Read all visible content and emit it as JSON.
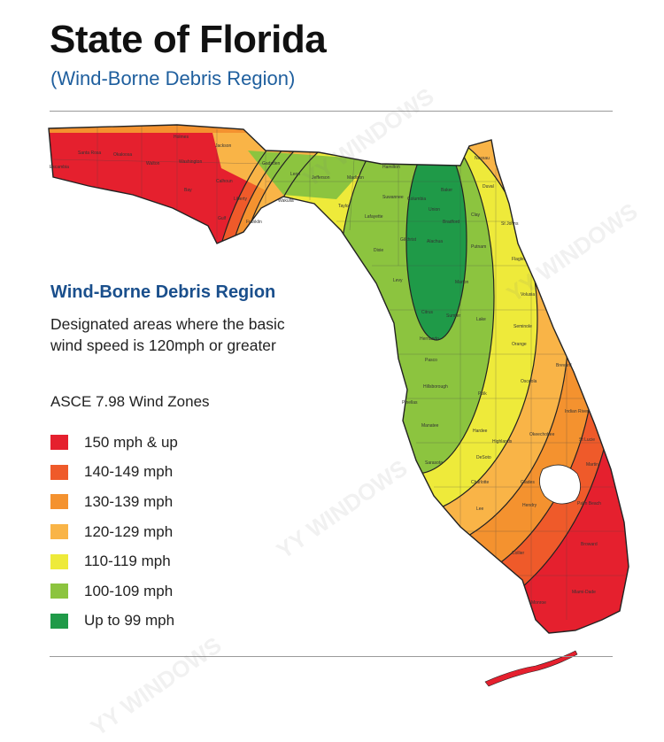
{
  "header": {
    "title": "State of Florida",
    "subtitle": "(Wind-Borne Debris Region)"
  },
  "legend": {
    "heading": "Wind-Borne Debris Region",
    "description_lines": [
      "Designated areas where the basic",
      "wind speed is 120mph or greater"
    ],
    "zones_title": "ASCE 7.98 Wind Zones",
    "zones": [
      {
        "label": "150 mph & up",
        "color": "#e5202e"
      },
      {
        "label": "140-149 mph",
        "color": "#ef5a2a"
      },
      {
        "label": "130-139 mph",
        "color": "#f4922f"
      },
      {
        "label": "120-129 mph",
        "color": "#f9b447"
      },
      {
        "label": "110-119 mph",
        "color": "#eeea3a"
      },
      {
        "label": "100-109 mph",
        "color": "#8cc43f"
      },
      {
        "label": "Up to 99 mph",
        "color": "#1f9a48"
      }
    ]
  },
  "watermark_text": "YY WINDOWS",
  "counties": {
    "panhandle": [
      "Santa Rosa",
      "Okaloosa",
      "Holmes",
      "Jackson",
      "Washington",
      "Escambia",
      "Walton",
      "Calhoun",
      "Bay",
      "Liberty",
      "Gulf",
      "Franklin",
      "Gadsden",
      "Leon",
      "Jefferson",
      "Madison",
      "Hamilton",
      "Wakulla",
      "Taylor",
      "Lafayette",
      "Suwannee",
      "Columbia",
      "Baker",
      "Nassau"
    ],
    "north": [
      "Duval",
      "Union",
      "Bradford",
      "Clay",
      "St Johns",
      "Dixie",
      "Gilchrist",
      "Alachua",
      "Putnam",
      "Flagler",
      "Levy",
      "Marion",
      "Volusia"
    ],
    "central": [
      "Citrus",
      "Sumter",
      "Lake",
      "Seminole",
      "Hernando",
      "Orange",
      "Brevard",
      "Pasco",
      "Osceola",
      "Hillsborough",
      "Pinellas",
      "Polk",
      "Indian River",
      "Manatee",
      "Hardee",
      "Okeechobee",
      "St Lucie",
      "Highlands",
      "Sarasota",
      "DeSoto",
      "Martin"
    ],
    "south": [
      "Charlotte",
      "Glades",
      "Lee",
      "Hendry",
      "Palm Beach",
      "Broward",
      "Collier",
      "Miami-Dade",
      "Monroe"
    ]
  }
}
